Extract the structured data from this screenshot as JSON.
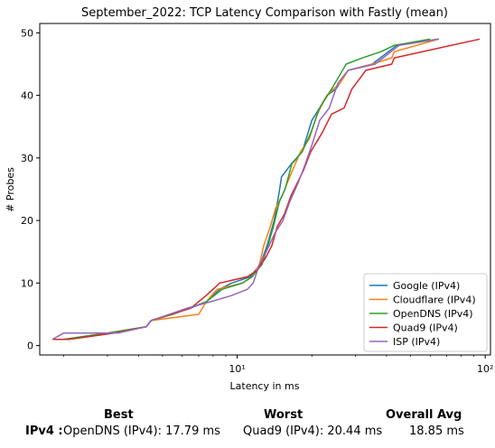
{
  "chart_data": {
    "type": "line",
    "title": "September_2022: TCP Latency Comparison with Fastly (mean)",
    "xlabel": "Latency in ms",
    "ylabel": "# Probes",
    "xscale": "log",
    "xlim": [
      1.6,
      105
    ],
    "ylim": [
      -1.5,
      51.5
    ],
    "x_tick_labels": [
      "10¹",
      "10²"
    ],
    "x_tick_values": [
      10,
      100
    ],
    "y_ticks": [
      0,
      10,
      20,
      30,
      40,
      50
    ],
    "grid": false,
    "legend_position": "lower-right",
    "series": [
      {
        "name": "Google (IPv4)",
        "color": "#1f77b4",
        "points": [
          [
            1.8,
            1
          ],
          [
            2.0,
            1
          ],
          [
            3.0,
            2
          ],
          [
            4.3,
            3
          ],
          [
            4.5,
            4
          ],
          [
            6.5,
            6
          ],
          [
            7.5,
            7
          ],
          [
            8.5,
            9
          ],
          [
            9.5,
            10
          ],
          [
            11.3,
            11
          ],
          [
            12.4,
            13
          ],
          [
            13.2,
            16
          ],
          [
            14.1,
            20
          ],
          [
            14.7,
            24
          ],
          [
            15.1,
            27
          ],
          [
            16.5,
            29
          ],
          [
            18.3,
            31
          ],
          [
            20.0,
            36
          ],
          [
            21.5,
            38
          ],
          [
            23.0,
            40
          ],
          [
            25.0,
            41
          ],
          [
            28.0,
            44
          ],
          [
            35.0,
            45
          ],
          [
            44.0,
            48
          ],
          [
            65.0,
            49
          ]
        ]
      },
      {
        "name": "Cloudflare (IPv4)",
        "color": "#ff7f0e",
        "points": [
          [
            1.8,
            1
          ],
          [
            2.0,
            1
          ],
          [
            3.0,
            2
          ],
          [
            4.3,
            3
          ],
          [
            4.5,
            4
          ],
          [
            7.0,
            5
          ],
          [
            7.5,
            7
          ],
          [
            8.3,
            9
          ],
          [
            10.5,
            10
          ],
          [
            11.5,
            11
          ],
          [
            12.3,
            13
          ],
          [
            12.8,
            16
          ],
          [
            13.6,
            19
          ],
          [
            14.3,
            22
          ],
          [
            15.2,
            24
          ],
          [
            16.3,
            27
          ],
          [
            18.0,
            31
          ],
          [
            19.5,
            33
          ],
          [
            21.0,
            37
          ],
          [
            23.0,
            40
          ],
          [
            26.0,
            42
          ],
          [
            28.0,
            44
          ],
          [
            35.0,
            45
          ],
          [
            42.0,
            46
          ],
          [
            43.0,
            47
          ],
          [
            65.0,
            49
          ]
        ]
      },
      {
        "name": "OpenDNS (IPv4)",
        "color": "#2ca02c",
        "points": [
          [
            1.8,
            1
          ],
          [
            2.0,
            1
          ],
          [
            3.0,
            2
          ],
          [
            4.3,
            3
          ],
          [
            4.5,
            4
          ],
          [
            5.5,
            5
          ],
          [
            7.5,
            7
          ],
          [
            8.7,
            9
          ],
          [
            10.5,
            10
          ],
          [
            11.5,
            11
          ],
          [
            12.6,
            13
          ],
          [
            13.3,
            16
          ],
          [
            14.0,
            19
          ],
          [
            14.8,
            23
          ],
          [
            15.6,
            25
          ],
          [
            16.6,
            29
          ],
          [
            18.3,
            31
          ],
          [
            19.8,
            34
          ],
          [
            21.5,
            38
          ],
          [
            24.0,
            41
          ],
          [
            27.5,
            45
          ],
          [
            32.0,
            46
          ],
          [
            38.0,
            47
          ],
          [
            43.0,
            48
          ],
          [
            60.0,
            49
          ]
        ]
      },
      {
        "name": "Quad9 (IPv4)",
        "color": "#d62728",
        "points": [
          [
            1.8,
            1
          ],
          [
            2.1,
            1
          ],
          [
            3.2,
            2
          ],
          [
            4.3,
            3
          ],
          [
            4.5,
            4
          ],
          [
            6.5,
            6
          ],
          [
            7.5,
            8
          ],
          [
            8.5,
            10
          ],
          [
            11.0,
            11
          ],
          [
            12.0,
            12
          ],
          [
            13.0,
            14
          ],
          [
            13.8,
            16
          ],
          [
            14.5,
            19
          ],
          [
            15.5,
            21
          ],
          [
            16.5,
            24
          ],
          [
            18.5,
            28
          ],
          [
            19.8,
            31
          ],
          [
            20.5,
            32
          ],
          [
            22.0,
            34
          ],
          [
            24.0,
            37
          ],
          [
            27.0,
            38
          ],
          [
            29.0,
            41
          ],
          [
            33.0,
            44
          ],
          [
            42.0,
            45
          ],
          [
            43.0,
            46
          ],
          [
            95.0,
            49
          ]
        ]
      },
      {
        "name": "ISP (IPv4)",
        "color": "#9467bd",
        "points": [
          [
            1.8,
            1
          ],
          [
            2.0,
            2
          ],
          [
            3.3,
            2
          ],
          [
            4.3,
            3
          ],
          [
            4.5,
            4
          ],
          [
            6.3,
            6
          ],
          [
            7.8,
            7
          ],
          [
            9.5,
            8
          ],
          [
            11.0,
            9
          ],
          [
            11.6,
            10
          ],
          [
            12.3,
            13
          ],
          [
            13.1,
            15
          ],
          [
            14.2,
            18
          ],
          [
            15.3,
            20
          ],
          [
            16.3,
            23
          ],
          [
            17.6,
            26
          ],
          [
            18.8,
            29
          ],
          [
            20.0,
            32
          ],
          [
            21.5,
            36
          ],
          [
            23.5,
            38
          ],
          [
            25.5,
            42
          ],
          [
            28.0,
            44
          ],
          [
            36.0,
            45
          ],
          [
            45.0,
            48
          ],
          [
            65.0,
            49
          ]
        ]
      }
    ]
  },
  "summary": {
    "best_header": "Best",
    "worst_header": "Worst",
    "overall_header": "Overall Avg",
    "row_label": "IPv4 :",
    "best_value": "OpenDNS (IPv4): 17.79 ms",
    "worst_value": "Quad9 (IPv4): 20.44 ms",
    "overall_value": "18.85 ms"
  }
}
